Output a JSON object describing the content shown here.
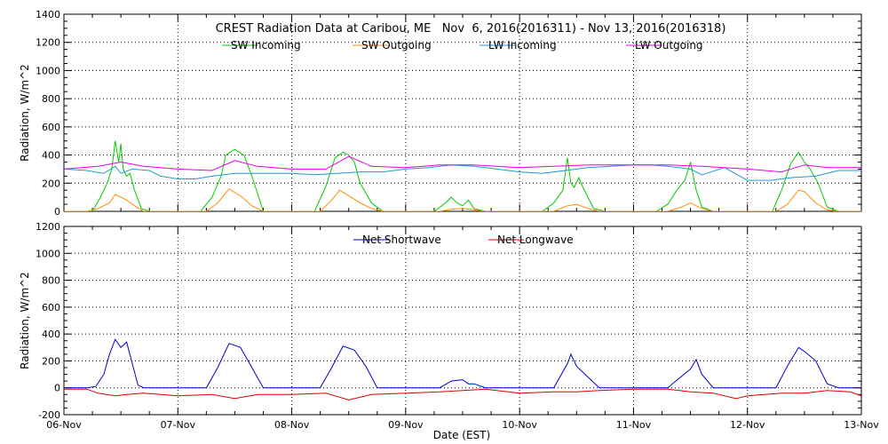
{
  "chart_data": [
    {
      "type": "line",
      "title": "CREST Radiation Data at Caribou, ME   Nov  6, 2016(2016311) - Nov 13, 2016(2016318)",
      "xlabel": "",
      "ylabel": "Radiation, W/m^2",
      "ylim": [
        0,
        1400
      ],
      "yticks": [
        0,
        200,
        400,
        600,
        800,
        1000,
        1200,
        1400
      ],
      "xlim": [
        0,
        7
      ],
      "grid": true,
      "legend_position": "top-center",
      "series": [
        {
          "name": "SW Incoming",
          "color": "#00cc00",
          "x": [
            0,
            0.15,
            0.25,
            0.32,
            0.38,
            0.42,
            0.45,
            0.48,
            0.5,
            0.52,
            0.55,
            0.58,
            0.62,
            0.68,
            0.75,
            1.0,
            1.2,
            1.3,
            1.38,
            1.42,
            1.5,
            1.58,
            1.65,
            1.75,
            2.0,
            2.2,
            2.3,
            2.38,
            2.45,
            2.5,
            2.55,
            2.6,
            2.7,
            2.8,
            3.0,
            3.25,
            3.35,
            3.4,
            3.45,
            3.5,
            3.55,
            3.6,
            3.7,
            4.0,
            4.2,
            4.3,
            4.38,
            4.42,
            4.45,
            4.48,
            4.52,
            4.55,
            4.6,
            4.65,
            4.75,
            5.0,
            5.2,
            5.3,
            5.38,
            5.45,
            5.5,
            5.55,
            5.6,
            5.7,
            6.0,
            6.22,
            6.3,
            6.38,
            6.45,
            6.5,
            6.55,
            6.62,
            6.7,
            6.8,
            7.0
          ],
          "values": [
            0,
            0,
            0,
            100,
            200,
            300,
            500,
            350,
            480,
            300,
            250,
            270,
            150,
            20,
            0,
            0,
            0,
            100,
            250,
            400,
            440,
            400,
            250,
            0,
            0,
            0,
            180,
            380,
            420,
            400,
            350,
            200,
            60,
            0,
            0,
            0,
            60,
            100,
            60,
            40,
            80,
            20,
            0,
            0,
            0,
            60,
            150,
            380,
            200,
            170,
            240,
            180,
            100,
            20,
            0,
            0,
            0,
            50,
            150,
            220,
            350,
            150,
            30,
            0,
            0,
            0,
            150,
            340,
            420,
            350,
            300,
            200,
            30,
            0,
            0
          ]
        },
        {
          "name": "SW Outgoing",
          "color": "#ff8c00",
          "x": [
            0,
            0.2,
            0.3,
            0.4,
            0.45,
            0.5,
            0.55,
            0.62,
            0.7,
            1.0,
            1.25,
            1.35,
            1.45,
            1.55,
            1.65,
            1.75,
            2.0,
            2.25,
            2.35,
            2.42,
            2.5,
            2.6,
            2.7,
            2.8,
            3.0,
            3.3,
            3.4,
            3.5,
            3.6,
            3.7,
            4.0,
            4.3,
            4.42,
            4.5,
            4.6,
            4.7,
            5.0,
            5.3,
            5.42,
            5.5,
            5.6,
            5.7,
            6.0,
            6.25,
            6.35,
            6.45,
            6.5,
            6.6,
            6.7,
            6.8,
            7.0
          ],
          "values": [
            0,
            0,
            20,
            60,
            120,
            100,
            80,
            40,
            0,
            0,
            0,
            60,
            160,
            110,
            40,
            0,
            0,
            0,
            80,
            150,
            110,
            60,
            20,
            0,
            0,
            0,
            15,
            20,
            10,
            0,
            0,
            0,
            40,
            50,
            20,
            0,
            0,
            0,
            30,
            60,
            20,
            0,
            0,
            0,
            50,
            150,
            140,
            60,
            10,
            0,
            0
          ]
        },
        {
          "name": "LW Incoming",
          "color": "#1e9bd7",
          "x": [
            0,
            0.2,
            0.35,
            0.45,
            0.5,
            0.6,
            0.75,
            0.85,
            1.0,
            1.15,
            1.3,
            1.5,
            1.8,
            2.0,
            2.2,
            2.4,
            2.6,
            2.8,
            3.0,
            3.2,
            3.4,
            3.6,
            3.8,
            4.0,
            4.2,
            4.4,
            4.6,
            4.8,
            5.0,
            5.15,
            5.3,
            5.5,
            5.6,
            5.8,
            6.0,
            6.2,
            6.4,
            6.6,
            6.8,
            7.0
          ],
          "values": [
            300,
            290,
            270,
            320,
            270,
            300,
            290,
            250,
            230,
            230,
            250,
            270,
            270,
            270,
            260,
            270,
            280,
            280,
            300,
            310,
            330,
            320,
            300,
            280,
            270,
            290,
            310,
            320,
            330,
            330,
            320,
            300,
            260,
            310,
            220,
            220,
            240,
            250,
            290,
            290
          ]
        },
        {
          "name": "LW Outgoing",
          "color": "#e600e6",
          "x": [
            0,
            0.3,
            0.5,
            0.7,
            1.0,
            1.3,
            1.5,
            1.7,
            2.0,
            2.3,
            2.5,
            2.7,
            3.0,
            3.3,
            3.6,
            4.0,
            4.3,
            4.6,
            5.0,
            5.3,
            5.6,
            6.0,
            6.3,
            6.5,
            6.7,
            7.0
          ],
          "values": [
            300,
            320,
            350,
            320,
            300,
            290,
            360,
            320,
            300,
            300,
            390,
            320,
            310,
            330,
            330,
            310,
            320,
            330,
            330,
            330,
            320,
            300,
            280,
            330,
            310,
            310
          ]
        }
      ]
    },
    {
      "type": "line",
      "title": "",
      "xlabel": "Date (EST)",
      "ylabel": "Radiation, W/m^2",
      "ylim": [
        -200,
        1200
      ],
      "yticks": [
        -200,
        0,
        200,
        400,
        600,
        800,
        1000,
        1200
      ],
      "xlim": [
        0,
        7
      ],
      "categories": [
        "06-Nov",
        "07-Nov",
        "08-Nov",
        "09-Nov",
        "10-Nov",
        "11-Nov",
        "12-Nov",
        "13-Nov"
      ],
      "grid": true,
      "legend_position": "top-center",
      "series": [
        {
          "name": "Net Shortwave",
          "color": "#0000cc",
          "x": [
            0,
            0.2,
            0.28,
            0.35,
            0.4,
            0.45,
            0.5,
            0.55,
            0.6,
            0.65,
            0.7,
            1.0,
            1.25,
            1.35,
            1.45,
            1.55,
            1.65,
            1.75,
            2.0,
            2.25,
            2.35,
            2.45,
            2.55,
            2.65,
            2.75,
            3.0,
            3.3,
            3.4,
            3.5,
            3.55,
            3.6,
            3.7,
            4.0,
            4.3,
            4.42,
            4.45,
            4.5,
            4.6,
            4.7,
            5.0,
            5.3,
            5.4,
            5.5,
            5.55,
            5.6,
            5.7,
            6.0,
            6.25,
            6.35,
            6.45,
            6.5,
            6.6,
            6.7,
            6.8,
            7.0
          ],
          "values": [
            0,
            0,
            10,
            100,
            250,
            360,
            300,
            340,
            180,
            20,
            0,
            0,
            0,
            150,
            330,
            300,
            150,
            0,
            0,
            0,
            150,
            310,
            280,
            160,
            0,
            0,
            0,
            50,
            60,
            30,
            30,
            0,
            0,
            0,
            180,
            250,
            160,
            80,
            0,
            0,
            0,
            70,
            140,
            210,
            100,
            0,
            0,
            0,
            160,
            300,
            270,
            200,
            30,
            0,
            0
          ]
        },
        {
          "name": "Net Longwave",
          "color": "#e00000",
          "x": [
            0,
            0.2,
            0.3,
            0.45,
            0.55,
            0.7,
            1.0,
            1.3,
            1.5,
            1.7,
            2.0,
            2.3,
            2.5,
            2.7,
            3.0,
            3.3,
            3.5,
            3.7,
            4.0,
            4.3,
            4.5,
            4.7,
            5.0,
            5.3,
            5.5,
            5.7,
            5.9,
            6.0,
            6.3,
            6.5,
            6.7,
            6.9,
            7.0
          ],
          "values": [
            -10,
            -10,
            -40,
            -60,
            -50,
            -40,
            -60,
            -50,
            -80,
            -50,
            -50,
            -40,
            -90,
            -50,
            -40,
            -30,
            -20,
            -10,
            -40,
            -30,
            -30,
            -20,
            -10,
            -10,
            -30,
            -40,
            -80,
            -60,
            -40,
            -40,
            -20,
            -30,
            -60
          ]
        }
      ]
    }
  ]
}
